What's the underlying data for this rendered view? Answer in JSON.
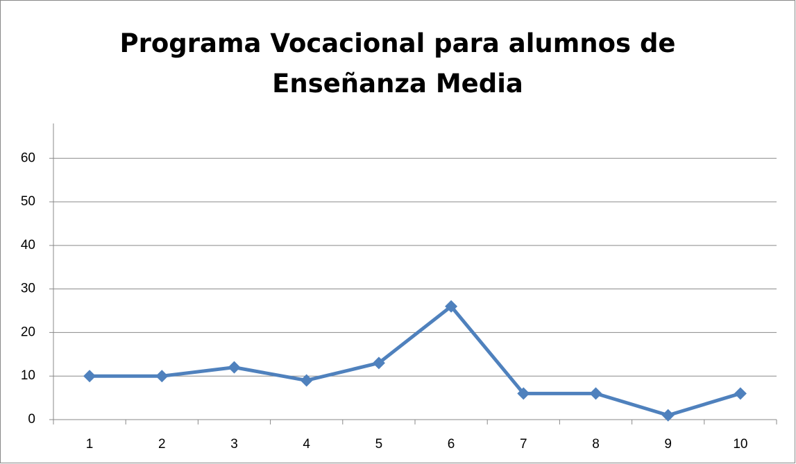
{
  "chart_data": {
    "type": "line",
    "title": "Programa Vocacional para alumnos de Enseñanza Media",
    "categories": [
      "1",
      "2",
      "3",
      "4",
      "5",
      "6",
      "7",
      "8",
      "9",
      "10"
    ],
    "series": [
      {
        "color": "#4f81bd",
        "values": [
          10,
          10,
          12,
          9,
          13,
          26,
          6,
          6,
          1,
          6
        ]
      }
    ],
    "ylim": [
      0,
      68
    ],
    "yticks": [
      0,
      10,
      20,
      30,
      40,
      50,
      60
    ],
    "grid": true
  }
}
